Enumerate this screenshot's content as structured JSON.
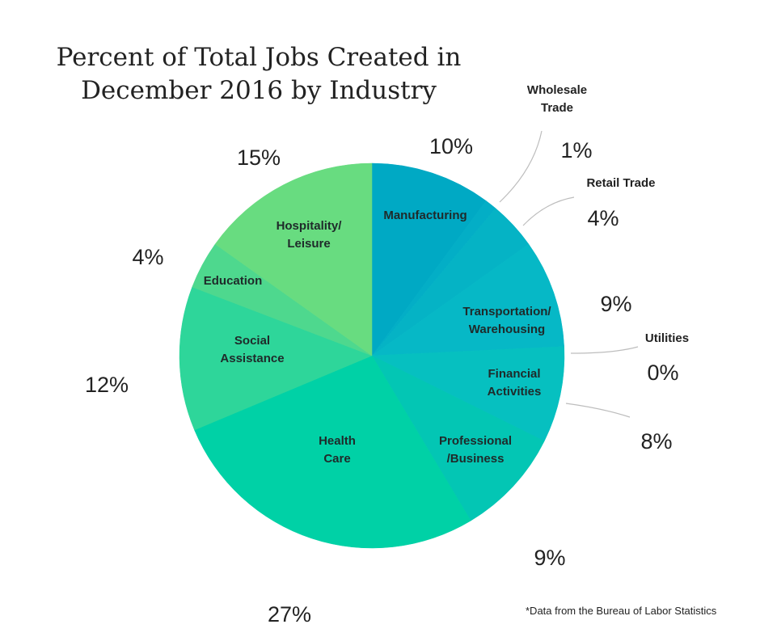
{
  "title_line_1": "Percent of Total Jobs Created in",
  "title_line_2": "December 2016 by Industry",
  "footnote": "*Data from the Bureau of Labor Statistics",
  "chart_data": {
    "type": "pie",
    "title": "Percent of Total Jobs Created in December 2016 by Industry",
    "unit": "%",
    "start": "12 o'clock",
    "direction": "clockwise",
    "slices": [
      {
        "label_lines": [
          "Manufacturing"
        ],
        "label": "Manufacturing",
        "value": 10,
        "value_label": "10%",
        "color": "#00a9c4"
      },
      {
        "label_lines": [
          "Wholesale",
          "Trade"
        ],
        "label": "Wholesale Trade",
        "value": 1,
        "value_label": "1%",
        "color": "#03aec6"
      },
      {
        "label_lines": [
          "Retail Trade"
        ],
        "label": "Retail Trade",
        "value": 4,
        "value_label": "4%",
        "color": "#05b3c5"
      },
      {
        "label_lines": [
          "Transportation/",
          "Warehousing"
        ],
        "label": "Transportation/ Warehousing",
        "value": 9,
        "value_label": "9%",
        "color": "#06b8c6"
      },
      {
        "label_lines": [
          "Utilities"
        ],
        "label": "Utilities",
        "value": 0,
        "value_label": "0%",
        "color": "#06bcc1"
      },
      {
        "label_lines": [
          "Financial",
          "Activities"
        ],
        "label": "Financial Activities",
        "value": 8,
        "value_label": "8%",
        "color": "#06c0c0"
      },
      {
        "label_lines": [
          "Professional",
          "/Business"
        ],
        "label": "Professional /Business",
        "value": 9,
        "value_label": "9%",
        "color": "#03c6b4"
      },
      {
        "label_lines": [
          "Health",
          "Care"
        ],
        "label": "Health Care",
        "value": 27,
        "value_label": "27%",
        "color": "#00d1a6"
      },
      {
        "label_lines": [
          "Social",
          "Assistance"
        ],
        "label": "Social Assistance",
        "value": 12,
        "value_label": "12%",
        "color": "#2ed69a"
      },
      {
        "label_lines": [
          "Education"
        ],
        "label": "Education",
        "value": 4,
        "value_label": "4%",
        "color": "#4ed88e"
      },
      {
        "label_lines": [
          "Hospitality/",
          "Leisure"
        ],
        "label": "Hospitality/ Leisure",
        "value": 15,
        "value_label": "15%",
        "color": "#68dc80"
      }
    ]
  }
}
